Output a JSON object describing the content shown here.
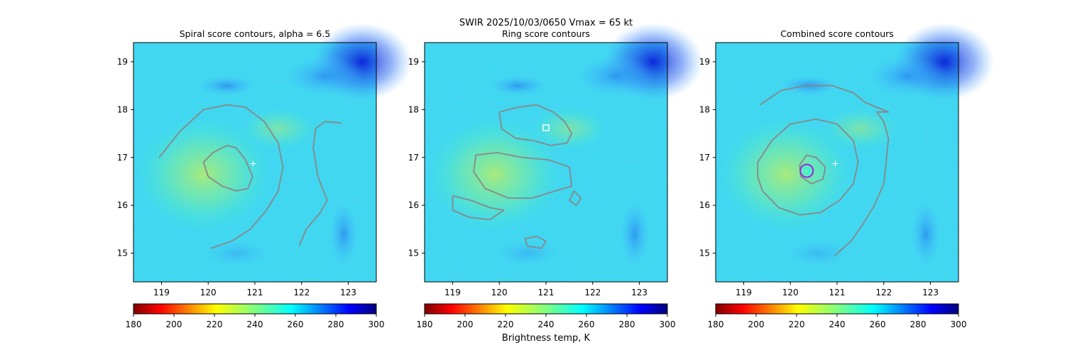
{
  "suptitle": "SWIR  2025/10/03/0650    Vmax = 65 kt",
  "colorbar_label": "Brightness temp, K",
  "chart_data": [
    {
      "type": "heatmap",
      "title": "Spiral score contours, alpha =  6.5",
      "xlim": [
        118.4,
        123.6
      ],
      "ylim": [
        14.4,
        19.4
      ],
      "xticks": [
        "119",
        "120",
        "121",
        "122",
        "123"
      ],
      "yticks": [
        "15",
        "16",
        "17",
        "18",
        "19"
      ],
      "markers": [
        {
          "kind": "plus",
          "lon": 120.96,
          "lat": 16.87,
          "color": "#ffffff"
        }
      ],
      "contours": [
        [
          [
            120.0,
            16.6
          ],
          [
            119.9,
            16.9
          ],
          [
            120.1,
            17.1
          ],
          [
            120.4,
            17.25
          ],
          [
            120.6,
            17.2
          ],
          [
            120.8,
            16.95
          ],
          [
            120.95,
            16.6
          ],
          [
            120.85,
            16.35
          ],
          [
            120.6,
            16.3
          ],
          [
            120.3,
            16.4
          ],
          [
            120.0,
            16.6
          ]
        ],
        [
          [
            118.95,
            17.0
          ],
          [
            119.4,
            17.55
          ],
          [
            119.9,
            18.0
          ],
          [
            120.4,
            18.1
          ],
          [
            120.8,
            18.05
          ],
          [
            121.2,
            17.75
          ],
          [
            121.5,
            17.3
          ],
          [
            121.6,
            16.8
          ],
          [
            121.5,
            16.3
          ],
          [
            121.25,
            15.9
          ],
          [
            120.9,
            15.5
          ],
          [
            120.5,
            15.25
          ],
          [
            120.05,
            15.1
          ]
        ],
        [
          [
            121.95,
            15.15
          ],
          [
            122.1,
            15.5
          ],
          [
            122.4,
            15.85
          ],
          [
            122.55,
            16.1
          ],
          [
            122.35,
            16.6
          ],
          [
            122.25,
            17.2
          ],
          [
            122.3,
            17.6
          ],
          [
            122.5,
            17.75
          ],
          [
            122.85,
            17.72
          ]
        ]
      ]
    },
    {
      "type": "heatmap",
      "title": "Ring score contours",
      "xlim": [
        118.4,
        123.6
      ],
      "ylim": [
        14.4,
        19.4
      ],
      "xticks": [
        "119",
        "120",
        "121",
        "122",
        "123"
      ],
      "yticks": [
        "15",
        "16",
        "17",
        "18",
        "19"
      ],
      "markers": [
        {
          "kind": "square",
          "lon": 121.0,
          "lat": 17.62,
          "color": "#ffffff"
        }
      ],
      "contours": [
        [
          [
            120.0,
            17.95
          ],
          [
            120.4,
            18.05
          ],
          [
            120.8,
            18.1
          ],
          [
            121.15,
            17.95
          ],
          [
            121.4,
            17.75
          ],
          [
            121.55,
            17.5
          ],
          [
            121.45,
            17.3
          ],
          [
            121.1,
            17.25
          ],
          [
            120.75,
            17.35
          ],
          [
            120.35,
            17.4
          ],
          [
            120.05,
            17.6
          ],
          [
            120.0,
            17.95
          ]
        ],
        [
          [
            119.5,
            17.05
          ],
          [
            119.95,
            17.1
          ],
          [
            120.5,
            17.0
          ],
          [
            121.05,
            16.95
          ],
          [
            121.5,
            16.8
          ],
          [
            121.55,
            16.4
          ],
          [
            121.2,
            16.3
          ],
          [
            120.7,
            16.15
          ],
          [
            120.2,
            16.15
          ],
          [
            119.7,
            16.35
          ],
          [
            119.45,
            16.7
          ],
          [
            119.5,
            17.05
          ]
        ],
        [
          [
            119.0,
            16.2
          ],
          [
            119.4,
            16.1
          ],
          [
            119.8,
            15.95
          ],
          [
            120.1,
            15.9
          ],
          [
            119.8,
            15.7
          ],
          [
            119.35,
            15.75
          ],
          [
            119.0,
            15.9
          ],
          [
            119.0,
            16.2
          ]
        ],
        [
          [
            120.55,
            15.3
          ],
          [
            120.8,
            15.35
          ],
          [
            121.0,
            15.25
          ],
          [
            120.9,
            15.1
          ],
          [
            120.6,
            15.15
          ],
          [
            120.55,
            15.3
          ]
        ],
        [
          [
            121.6,
            16.3
          ],
          [
            121.75,
            16.15
          ],
          [
            121.65,
            16.0
          ],
          [
            121.5,
            16.1
          ],
          [
            121.6,
            16.3
          ]
        ]
      ]
    },
    {
      "type": "heatmap",
      "title": "Combined score contours",
      "xlim": [
        118.4,
        123.6
      ],
      "ylim": [
        14.4,
        19.4
      ],
      "xticks": [
        "119",
        "120",
        "121",
        "122",
        "123"
      ],
      "yticks": [
        "15",
        "16",
        "17",
        "18",
        "19"
      ],
      "markers": [
        {
          "kind": "plus",
          "lon": 120.96,
          "lat": 16.87,
          "color": "#ffffff"
        },
        {
          "kind": "circle",
          "lon": 120.35,
          "lat": 16.72,
          "color": "#8a2be2"
        },
        {
          "kind": "square",
          "lon": 120.35,
          "lat": 16.72,
          "color": "#00ffff"
        }
      ],
      "contours": [
        [
          [
            120.2,
            16.85
          ],
          [
            120.35,
            17.05
          ],
          [
            120.55,
            17.0
          ],
          [
            120.75,
            16.8
          ],
          [
            120.7,
            16.55
          ],
          [
            120.45,
            16.45
          ],
          [
            120.22,
            16.6
          ],
          [
            120.2,
            16.85
          ]
        ],
        [
          [
            119.3,
            16.9
          ],
          [
            119.6,
            17.35
          ],
          [
            120.0,
            17.7
          ],
          [
            120.55,
            17.8
          ],
          [
            121.0,
            17.7
          ],
          [
            121.35,
            17.35
          ],
          [
            121.45,
            16.9
          ],
          [
            121.35,
            16.45
          ],
          [
            121.05,
            16.1
          ],
          [
            120.65,
            15.85
          ],
          [
            120.2,
            15.8
          ],
          [
            119.75,
            15.95
          ],
          [
            119.4,
            16.3
          ],
          [
            119.3,
            16.6
          ],
          [
            119.3,
            16.9
          ]
        ],
        [
          [
            119.35,
            18.1
          ],
          [
            119.8,
            18.4
          ],
          [
            120.3,
            18.5
          ],
          [
            120.9,
            18.5
          ],
          [
            121.35,
            18.35
          ],
          [
            121.6,
            18.15
          ],
          [
            121.85,
            18.05
          ],
          [
            122.1,
            17.95
          ],
          [
            121.85,
            17.95
          ],
          [
            122.0,
            17.75
          ],
          [
            122.1,
            17.4
          ],
          [
            122.05,
            16.9
          ],
          [
            122.0,
            16.45
          ],
          [
            121.8,
            16.0
          ],
          [
            121.55,
            15.6
          ],
          [
            121.3,
            15.25
          ],
          [
            120.95,
            14.95
          ]
        ]
      ]
    }
  ],
  "colorbar": {
    "min": 180,
    "max": 300,
    "ticks": [
      "180",
      "200",
      "220",
      "240",
      "260",
      "280",
      "300"
    ]
  }
}
